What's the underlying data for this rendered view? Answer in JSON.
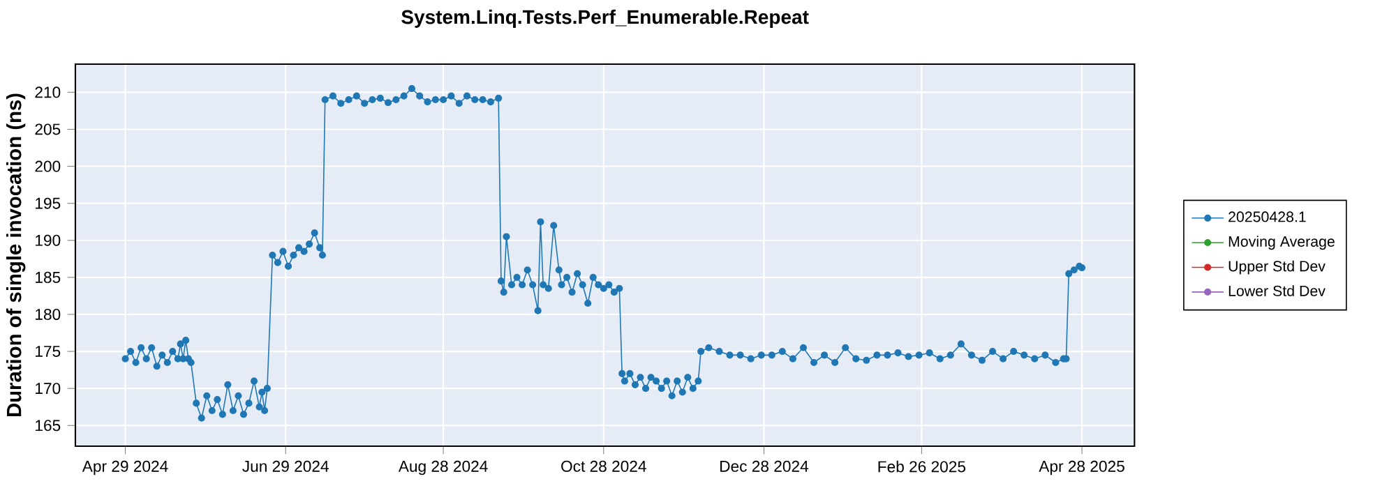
{
  "chart_data": {
    "type": "line",
    "title": "System.Linq.Tests.Perf_Enumerable.Repeat",
    "ylabel": "Duration of single invocation (ns)",
    "xlim": [
      "2024-04-10",
      "2025-05-18"
    ],
    "ylim": [
      162.2,
      213.8
    ],
    "xticks": [
      {
        "value": "2024-04-29",
        "label": "Apr 29 2024"
      },
      {
        "value": "2024-06-29",
        "label": "Jun 29 2024"
      },
      {
        "value": "2024-08-28",
        "label": "Aug 28 2024"
      },
      {
        "value": "2024-10-28",
        "label": "Oct 28 2024"
      },
      {
        "value": "2024-12-28",
        "label": "Dec 28 2024"
      },
      {
        "value": "2025-02-26",
        "label": "Feb 26 2025"
      },
      {
        "value": "2025-04-28",
        "label": "Apr 28 2025"
      }
    ],
    "yticks": [
      165,
      170,
      175,
      180,
      185,
      190,
      195,
      200,
      205,
      210
    ],
    "grid": true,
    "legend": "right",
    "marker": "circle",
    "line_style": "solid",
    "series": [
      {
        "name": "20250428.1",
        "color": "#1f77b4",
        "x": [
          "2024-04-29",
          "2024-05-01",
          "2024-05-03",
          "2024-05-05",
          "2024-05-07",
          "2024-05-09",
          "2024-05-11",
          "2024-05-13",
          "2024-05-15",
          "2024-05-17",
          "2024-05-19",
          "2024-05-20",
          "2024-05-21",
          "2024-05-22",
          "2024-05-23",
          "2024-05-24",
          "2024-05-26",
          "2024-05-28",
          "2024-05-30",
          "2024-06-01",
          "2024-06-03",
          "2024-06-05",
          "2024-06-07",
          "2024-06-09",
          "2024-06-11",
          "2024-06-13",
          "2024-06-15",
          "2024-06-17",
          "2024-06-19",
          "2024-06-20",
          "2024-06-21",
          "2024-06-22",
          "2024-06-24",
          "2024-06-26",
          "2024-06-28",
          "2024-06-30",
          "2024-07-02",
          "2024-07-04",
          "2024-07-06",
          "2024-07-08",
          "2024-07-10",
          "2024-07-12",
          "2024-07-13",
          "2024-07-14",
          "2024-07-17",
          "2024-07-20",
          "2024-07-23",
          "2024-07-26",
          "2024-07-29",
          "2024-08-01",
          "2024-08-04",
          "2024-08-07",
          "2024-08-10",
          "2024-08-13",
          "2024-08-16",
          "2024-08-19",
          "2024-08-22",
          "2024-08-25",
          "2024-08-28",
          "2024-08-31",
          "2024-09-03",
          "2024-09-06",
          "2024-09-09",
          "2024-09-12",
          "2024-09-15",
          "2024-09-18",
          "2024-09-19",
          "2024-09-20",
          "2024-09-21",
          "2024-09-23",
          "2024-09-25",
          "2024-09-27",
          "2024-09-29",
          "2024-10-01",
          "2024-10-03",
          "2024-10-04",
          "2024-10-05",
          "2024-10-07",
          "2024-10-09",
          "2024-10-11",
          "2024-10-12",
          "2024-10-14",
          "2024-10-16",
          "2024-10-18",
          "2024-10-20",
          "2024-10-22",
          "2024-10-24",
          "2024-10-26",
          "2024-10-28",
          "2024-10-30",
          "2024-11-01",
          "2024-11-03",
          "2024-11-04",
          "2024-11-05",
          "2024-11-07",
          "2024-11-09",
          "2024-11-11",
          "2024-11-13",
          "2024-11-15",
          "2024-11-17",
          "2024-11-19",
          "2024-11-21",
          "2024-11-23",
          "2024-11-25",
          "2024-11-27",
          "2024-11-29",
          "2024-12-01",
          "2024-12-03",
          "2024-12-04",
          "2024-12-07",
          "2024-12-11",
          "2024-12-15",
          "2024-12-19",
          "2024-12-23",
          "2024-12-27",
          "2024-12-31",
          "2025-01-04",
          "2025-01-08",
          "2025-01-12",
          "2025-01-16",
          "2025-01-20",
          "2025-01-24",
          "2025-01-28",
          "2025-02-01",
          "2025-02-05",
          "2025-02-09",
          "2025-02-13",
          "2025-02-17",
          "2025-02-21",
          "2025-02-25",
          "2025-03-01",
          "2025-03-05",
          "2025-03-09",
          "2025-03-13",
          "2025-03-17",
          "2025-03-21",
          "2025-03-25",
          "2025-03-29",
          "2025-04-02",
          "2025-04-06",
          "2025-04-10",
          "2025-04-14",
          "2025-04-18",
          "2025-04-21",
          "2025-04-22",
          "2025-04-23",
          "2025-04-25",
          "2025-04-27",
          "2025-04-28"
        ],
        "values": [
          174,
          175,
          173.5,
          175.5,
          174,
          175.5,
          173,
          174.5,
          173.5,
          175,
          174,
          176,
          174,
          176.5,
          174,
          173.5,
          168,
          166,
          169,
          167,
          168.5,
          166.5,
          170.5,
          167,
          169,
          166.5,
          168,
          171,
          167.5,
          169.5,
          167,
          170,
          188,
          187,
          188.5,
          186.5,
          188,
          189,
          188.5,
          189.5,
          191,
          189,
          188,
          209,
          209.5,
          208.5,
          209,
          209.5,
          208.5,
          209,
          209.2,
          208.6,
          209,
          209.5,
          210.5,
          209.5,
          208.7,
          209,
          209,
          209.5,
          208.5,
          209.5,
          209,
          209,
          208.7,
          209.2,
          184.5,
          183,
          190.5,
          184,
          185,
          184,
          186,
          184,
          180.5,
          192.5,
          184,
          183.5,
          192,
          186,
          184,
          185,
          183,
          185.5,
          184,
          181.5,
          185,
          184,
          183.5,
          184,
          183,
          183.5,
          172,
          171,
          172,
          170.5,
          171.5,
          170,
          171.5,
          171,
          170,
          171,
          169,
          171,
          169.5,
          171.5,
          170,
          171,
          175,
          175.5,
          175,
          174.5,
          174.5,
          174,
          174.5,
          174.5,
          175,
          174,
          175.5,
          173.5,
          174.5,
          173.5,
          175.5,
          174,
          173.8,
          174.5,
          174.5,
          174.8,
          174.3,
          174.5,
          174.8,
          174,
          174.5,
          176,
          174.5,
          173.8,
          175,
          174,
          175,
          174.5,
          174,
          174.5,
          173.5,
          174,
          174,
          185.5,
          186,
          186.5,
          186.3
        ]
      },
      {
        "name": "Moving Average",
        "color": "#2ca02c"
      },
      {
        "name": "Upper Std Dev",
        "color": "#d62728"
      },
      {
        "name": "Lower Std Dev",
        "color": "#9467bd"
      }
    ]
  }
}
